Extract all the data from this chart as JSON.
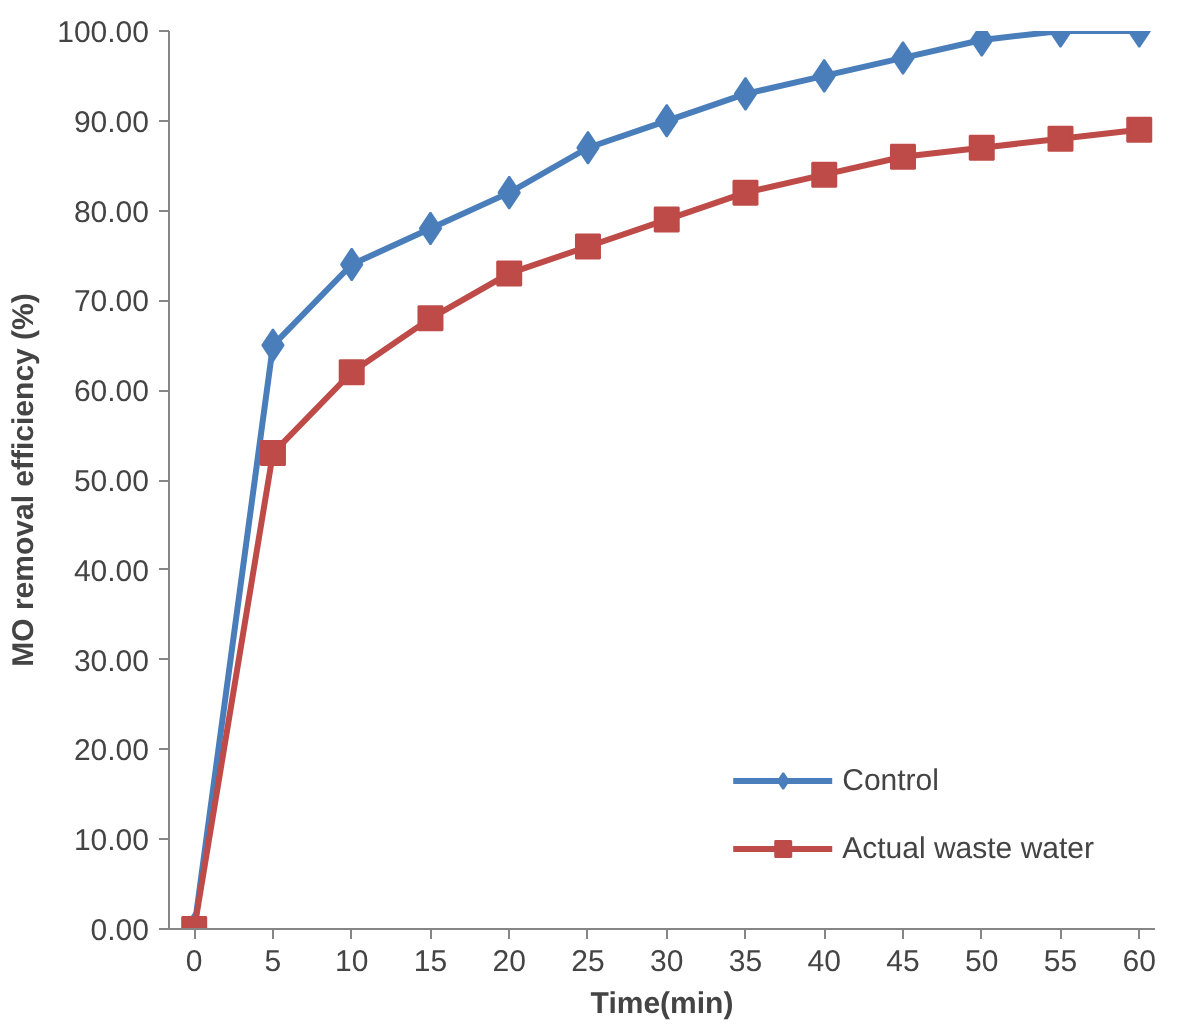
{
  "chart_data": {
    "type": "line",
    "xlabel": "Time(min)",
    "ylabel": "MO removal efficiency (%)",
    "x": [
      0,
      5,
      10,
      15,
      20,
      25,
      30,
      35,
      40,
      45,
      50,
      55,
      60
    ],
    "series": [
      {
        "name": "Control",
        "color": "#4a7ebb",
        "marker": "diamond",
        "values": [
          0,
          65,
          74,
          78,
          82,
          87,
          90,
          93,
          95,
          97,
          99,
          100,
          100
        ]
      },
      {
        "name": "Actual waste water",
        "color": "#be4b48",
        "marker": "square",
        "values": [
          0,
          53,
          62,
          68,
          73,
          76,
          79,
          82,
          84,
          86,
          87,
          88,
          89
        ]
      }
    ],
    "xlim": [
      -1.6,
      61
    ],
    "ylim": [
      0,
      100
    ],
    "xticks": [
      0,
      5,
      10,
      15,
      20,
      25,
      30,
      35,
      40,
      45,
      50,
      55,
      60
    ],
    "yticks": [
      {
        "value": 0,
        "label": "0.00"
      },
      {
        "value": 10,
        "label": "10.00"
      },
      {
        "value": 20,
        "label": "20.00"
      },
      {
        "value": 30,
        "label": "30.00"
      },
      {
        "value": 40,
        "label": "40.00"
      },
      {
        "value": 50,
        "label": "50.00"
      },
      {
        "value": 60,
        "label": "60.00"
      },
      {
        "value": 70,
        "label": "70.00"
      },
      {
        "value": 80,
        "label": "80.00"
      },
      {
        "value": 90,
        "label": "90.00"
      },
      {
        "value": 100,
        "label": "100.00"
      }
    ],
    "grid": false,
    "legend": "bottom right",
    "line_style": "solid"
  }
}
